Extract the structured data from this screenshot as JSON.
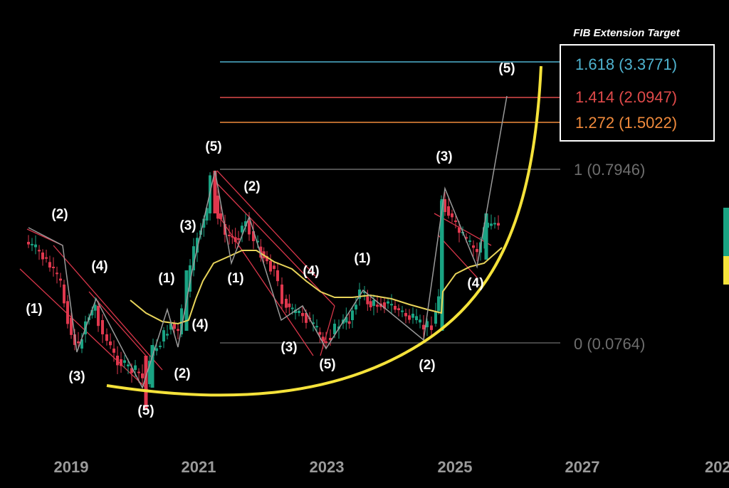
{
  "chart_data": {
    "type": "candlestick",
    "title": "",
    "x_axis": {
      "tick_labels": [
        "2019",
        "2021",
        "2023",
        "2025",
        "2027",
        "202"
      ]
    },
    "fib_box": {
      "title": "FIB Extension Target",
      "lines": [
        {
          "ratio": "1.618",
          "price": "3.3771",
          "label": "1.618 (3.3771)",
          "color": "#4fb3cf"
        },
        {
          "ratio": "1.414",
          "price": "2.0947",
          "label": "1.414 (2.0947)",
          "color": "#e04a4a"
        },
        {
          "ratio": "1.272",
          "price": "1.5022",
          "label": "1.272 (1.5022)",
          "color": "#f08a3c"
        }
      ]
    },
    "fib_levels": [
      {
        "ratio": "1",
        "price": "0.7946",
        "label": "1 (0.7946)",
        "color": "#8a8a8a"
      },
      {
        "ratio": "0",
        "price": "0.0764",
        "label": "0 (0.0764)",
        "color": "#8a8a8a"
      }
    ],
    "wave_labels": [
      {
        "label": "(1)",
        "date": "2018.3"
      },
      {
        "label": "(2)",
        "date": "2018.7"
      },
      {
        "label": "(3)",
        "date": "2018.9"
      },
      {
        "label": "(4)",
        "date": "2019.4"
      },
      {
        "label": "(5)",
        "date": "2020.2"
      },
      {
        "label": "(1)",
        "date": "2020.5"
      },
      {
        "label": "(2)",
        "date": "2020.6"
      },
      {
        "label": "(3)",
        "date": "2020.95"
      },
      {
        "label": "(4)",
        "date": "2020.98"
      },
      {
        "label": "(5)",
        "date": "2021.3"
      },
      {
        "label": "(1)",
        "date": "2021.6"
      },
      {
        "label": "(2)",
        "date": "2021.9"
      },
      {
        "label": "(4)",
        "date": "2022.4"
      },
      {
        "label": "(3)",
        "date": "2022.1"
      },
      {
        "label": "(5)",
        "date": "2022.8"
      },
      {
        "label": "(1)",
        "date": "2023.5"
      },
      {
        "label": "(2)",
        "date": "2024.6"
      },
      {
        "label": "(3)",
        "date": "2025.0"
      },
      {
        "label": "(4)",
        "date": "2025.3"
      },
      {
        "label": "(5)",
        "date": "2025.9"
      }
    ],
    "legend": "none",
    "grid": false,
    "colors": {
      "up_candle": "#1aa383",
      "down_candle": "#e0384e",
      "moving_average": "#e8d45a",
      "curve": "#f5e23a",
      "channel": "#d8364a",
      "wave_path": "#9a9a9a",
      "side_marker_green": "#1aa383",
      "side_marker_yellow": "#f5e23a"
    }
  }
}
